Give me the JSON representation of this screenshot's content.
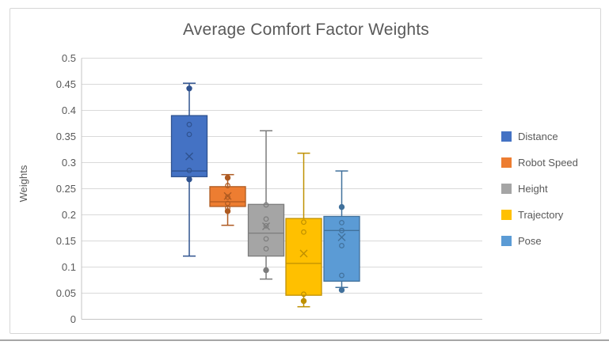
{
  "chart_data": {
    "type": "boxplot",
    "title": "Average Comfort Factor Weights",
    "xlabel": "",
    "ylabel": "Weights",
    "ylim": [
      0,
      0.5
    ],
    "yticks": [
      0,
      0.05,
      0.1,
      0.15,
      0.2,
      0.25,
      0.3,
      0.35,
      0.4,
      0.45,
      0.5
    ],
    "ytick_labels": [
      "0",
      "0.05",
      "0.1",
      "0.15",
      "0.2",
      "0.25",
      "0.3",
      "0.35",
      "0.4",
      "0.45",
      "0.5"
    ],
    "grid": true,
    "legend_position": "right",
    "axis_color": "#c6c6c6",
    "grid_color": "#d9d9d9",
    "text_color": "#595959",
    "series": [
      {
        "name": "Distance",
        "color": "#4472C4",
        "line_color": "#2F528F",
        "whisker_low": 0.121,
        "q1": 0.273,
        "median": 0.284,
        "q3": 0.39,
        "whisker_high": 0.452,
        "mean": 0.312,
        "outlier_dots": [
          0.442,
          0.268
        ],
        "inner_points": [
          0.373,
          0.354,
          0.285
        ]
      },
      {
        "name": "Robot Speed",
        "color": "#ED7D31",
        "line_color": "#AE5A21",
        "whisker_low": 0.18,
        "q1": 0.216,
        "median": 0.225,
        "q3": 0.254,
        "whisker_high": 0.277,
        "mean": 0.236,
        "outlier_dots": [
          0.271,
          0.207
        ],
        "inner_points": [
          0.256,
          0.234,
          0.222,
          0.213
        ]
      },
      {
        "name": "Height",
        "color": "#A5A5A5",
        "line_color": "#7C7C7C",
        "whisker_low": 0.077,
        "q1": 0.121,
        "median": 0.165,
        "q3": 0.22,
        "whisker_high": 0.361,
        "mean": 0.178,
        "outlier_dots": [
          0.094
        ],
        "inner_points": [
          0.219,
          0.192,
          0.179,
          0.154,
          0.135
        ]
      },
      {
        "name": "Trajectory",
        "color": "#FFC000",
        "line_color": "#BF9000",
        "whisker_low": 0.024,
        "q1": 0.046,
        "median": 0.107,
        "q3": 0.193,
        "whisker_high": 0.318,
        "mean": 0.126,
        "outlier_dots": [
          0.035
        ],
        "inner_points": [
          0.186,
          0.167,
          0.048
        ]
      },
      {
        "name": "Pose",
        "color": "#5B9BD5",
        "line_color": "#41719C",
        "whisker_low": 0.061,
        "q1": 0.073,
        "median": 0.17,
        "q3": 0.197,
        "whisker_high": 0.284,
        "mean": 0.157,
        "outlier_dots": [
          0.215,
          0.056
        ],
        "inner_points": [
          0.185,
          0.17,
          0.141,
          0.084
        ]
      }
    ]
  }
}
